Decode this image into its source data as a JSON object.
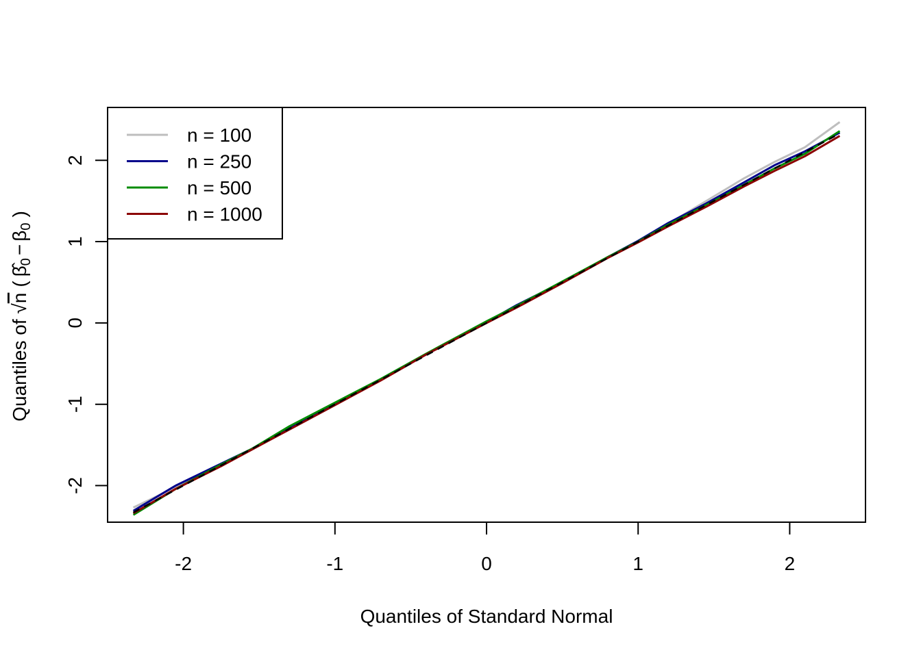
{
  "chart_data": {
    "type": "line",
    "title": "",
    "xlabel": "Quantiles of Standard Normal",
    "ylabel_parts": {
      "prefix": "Quantiles of ",
      "sqrt_symbol": "√",
      "n": "n",
      "open_paren": "(",
      "beta_hat": "β̂",
      "sub_zero": "0",
      "minus": "−",
      "beta": "β",
      "close_paren": ")"
    },
    "xlim": [
      -2.5,
      2.5
    ],
    "ylim": [
      -2.45,
      2.65
    ],
    "xticks": [
      -2,
      -1,
      0,
      1,
      2
    ],
    "xtick_labels": [
      "-2",
      "-1",
      "0",
      "1",
      "2"
    ],
    "yticks": [
      -2,
      -1,
      0,
      1,
      2
    ],
    "ytick_labels": [
      "-2",
      "-1",
      "0",
      "1",
      "2"
    ],
    "grid": false,
    "legend_position": "top-left",
    "reference_line": {
      "style": "dashed",
      "color": "#000000",
      "x": [
        -2.33,
        2.33
      ],
      "y": [
        -2.33,
        2.33
      ]
    },
    "x": [
      -2.33,
      -2.05,
      -1.75,
      -1.55,
      -1.3,
      -1.0,
      -0.7,
      -0.4,
      0.0,
      0.2,
      0.5,
      0.8,
      1.0,
      1.2,
      1.45,
      1.7,
      1.9,
      2.1,
      2.33
    ],
    "series": [
      {
        "name": "n = 100",
        "color": "#bebebe",
        "values": [
          -2.27,
          -2.02,
          -1.75,
          -1.56,
          -1.29,
          -1.0,
          -0.7,
          -0.39,
          0.0,
          0.21,
          0.5,
          0.81,
          1.01,
          1.22,
          1.5,
          1.78,
          1.98,
          2.16,
          2.47
        ]
      },
      {
        "name": "n = 250",
        "color": "#00008b",
        "values": [
          -2.31,
          -2.0,
          -1.73,
          -1.55,
          -1.29,
          -1.0,
          -0.7,
          -0.39,
          0.01,
          0.22,
          0.5,
          0.81,
          1.01,
          1.23,
          1.47,
          1.73,
          1.94,
          2.11,
          2.34
        ]
      },
      {
        "name": "n = 500",
        "color": "#008b00",
        "values": [
          -2.36,
          -2.04,
          -1.74,
          -1.55,
          -1.27,
          -0.98,
          -0.69,
          -0.38,
          0.02,
          0.21,
          0.51,
          0.81,
          1.0,
          1.21,
          1.45,
          1.7,
          1.9,
          2.08,
          2.36
        ]
      },
      {
        "name": "n = 1000",
        "color": "#8b0000",
        "values": [
          -2.34,
          -2.04,
          -1.76,
          -1.56,
          -1.31,
          -1.01,
          -0.71,
          -0.39,
          0.0,
          0.19,
          0.49,
          0.8,
          0.99,
          1.19,
          1.43,
          1.68,
          1.87,
          2.05,
          2.3
        ]
      }
    ]
  }
}
